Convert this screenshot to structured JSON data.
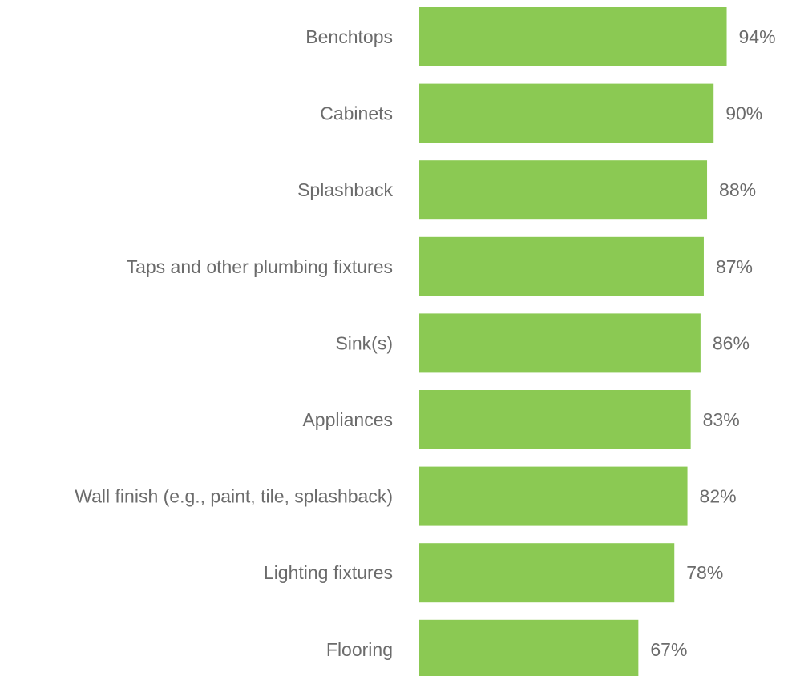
{
  "chart_data": {
    "type": "bar",
    "orientation": "horizontal",
    "categories": [
      "Benchtops",
      "Cabinets",
      "Splashback",
      "Taps and other plumbing fixtures",
      "Sink(s)",
      "Appliances",
      "Wall finish (e.g., paint, tile, splashback)",
      "Lighting fixtures",
      "Flooring"
    ],
    "values": [
      94,
      90,
      88,
      87,
      86,
      83,
      82,
      78,
      67
    ],
    "value_labels": [
      "94%",
      "90%",
      "88%",
      "87%",
      "86%",
      "83%",
      "82%",
      "78%",
      "67%"
    ],
    "xlim": [
      0,
      100
    ],
    "grid": false,
    "legend": "none",
    "bar_color": "#8bc953"
  }
}
